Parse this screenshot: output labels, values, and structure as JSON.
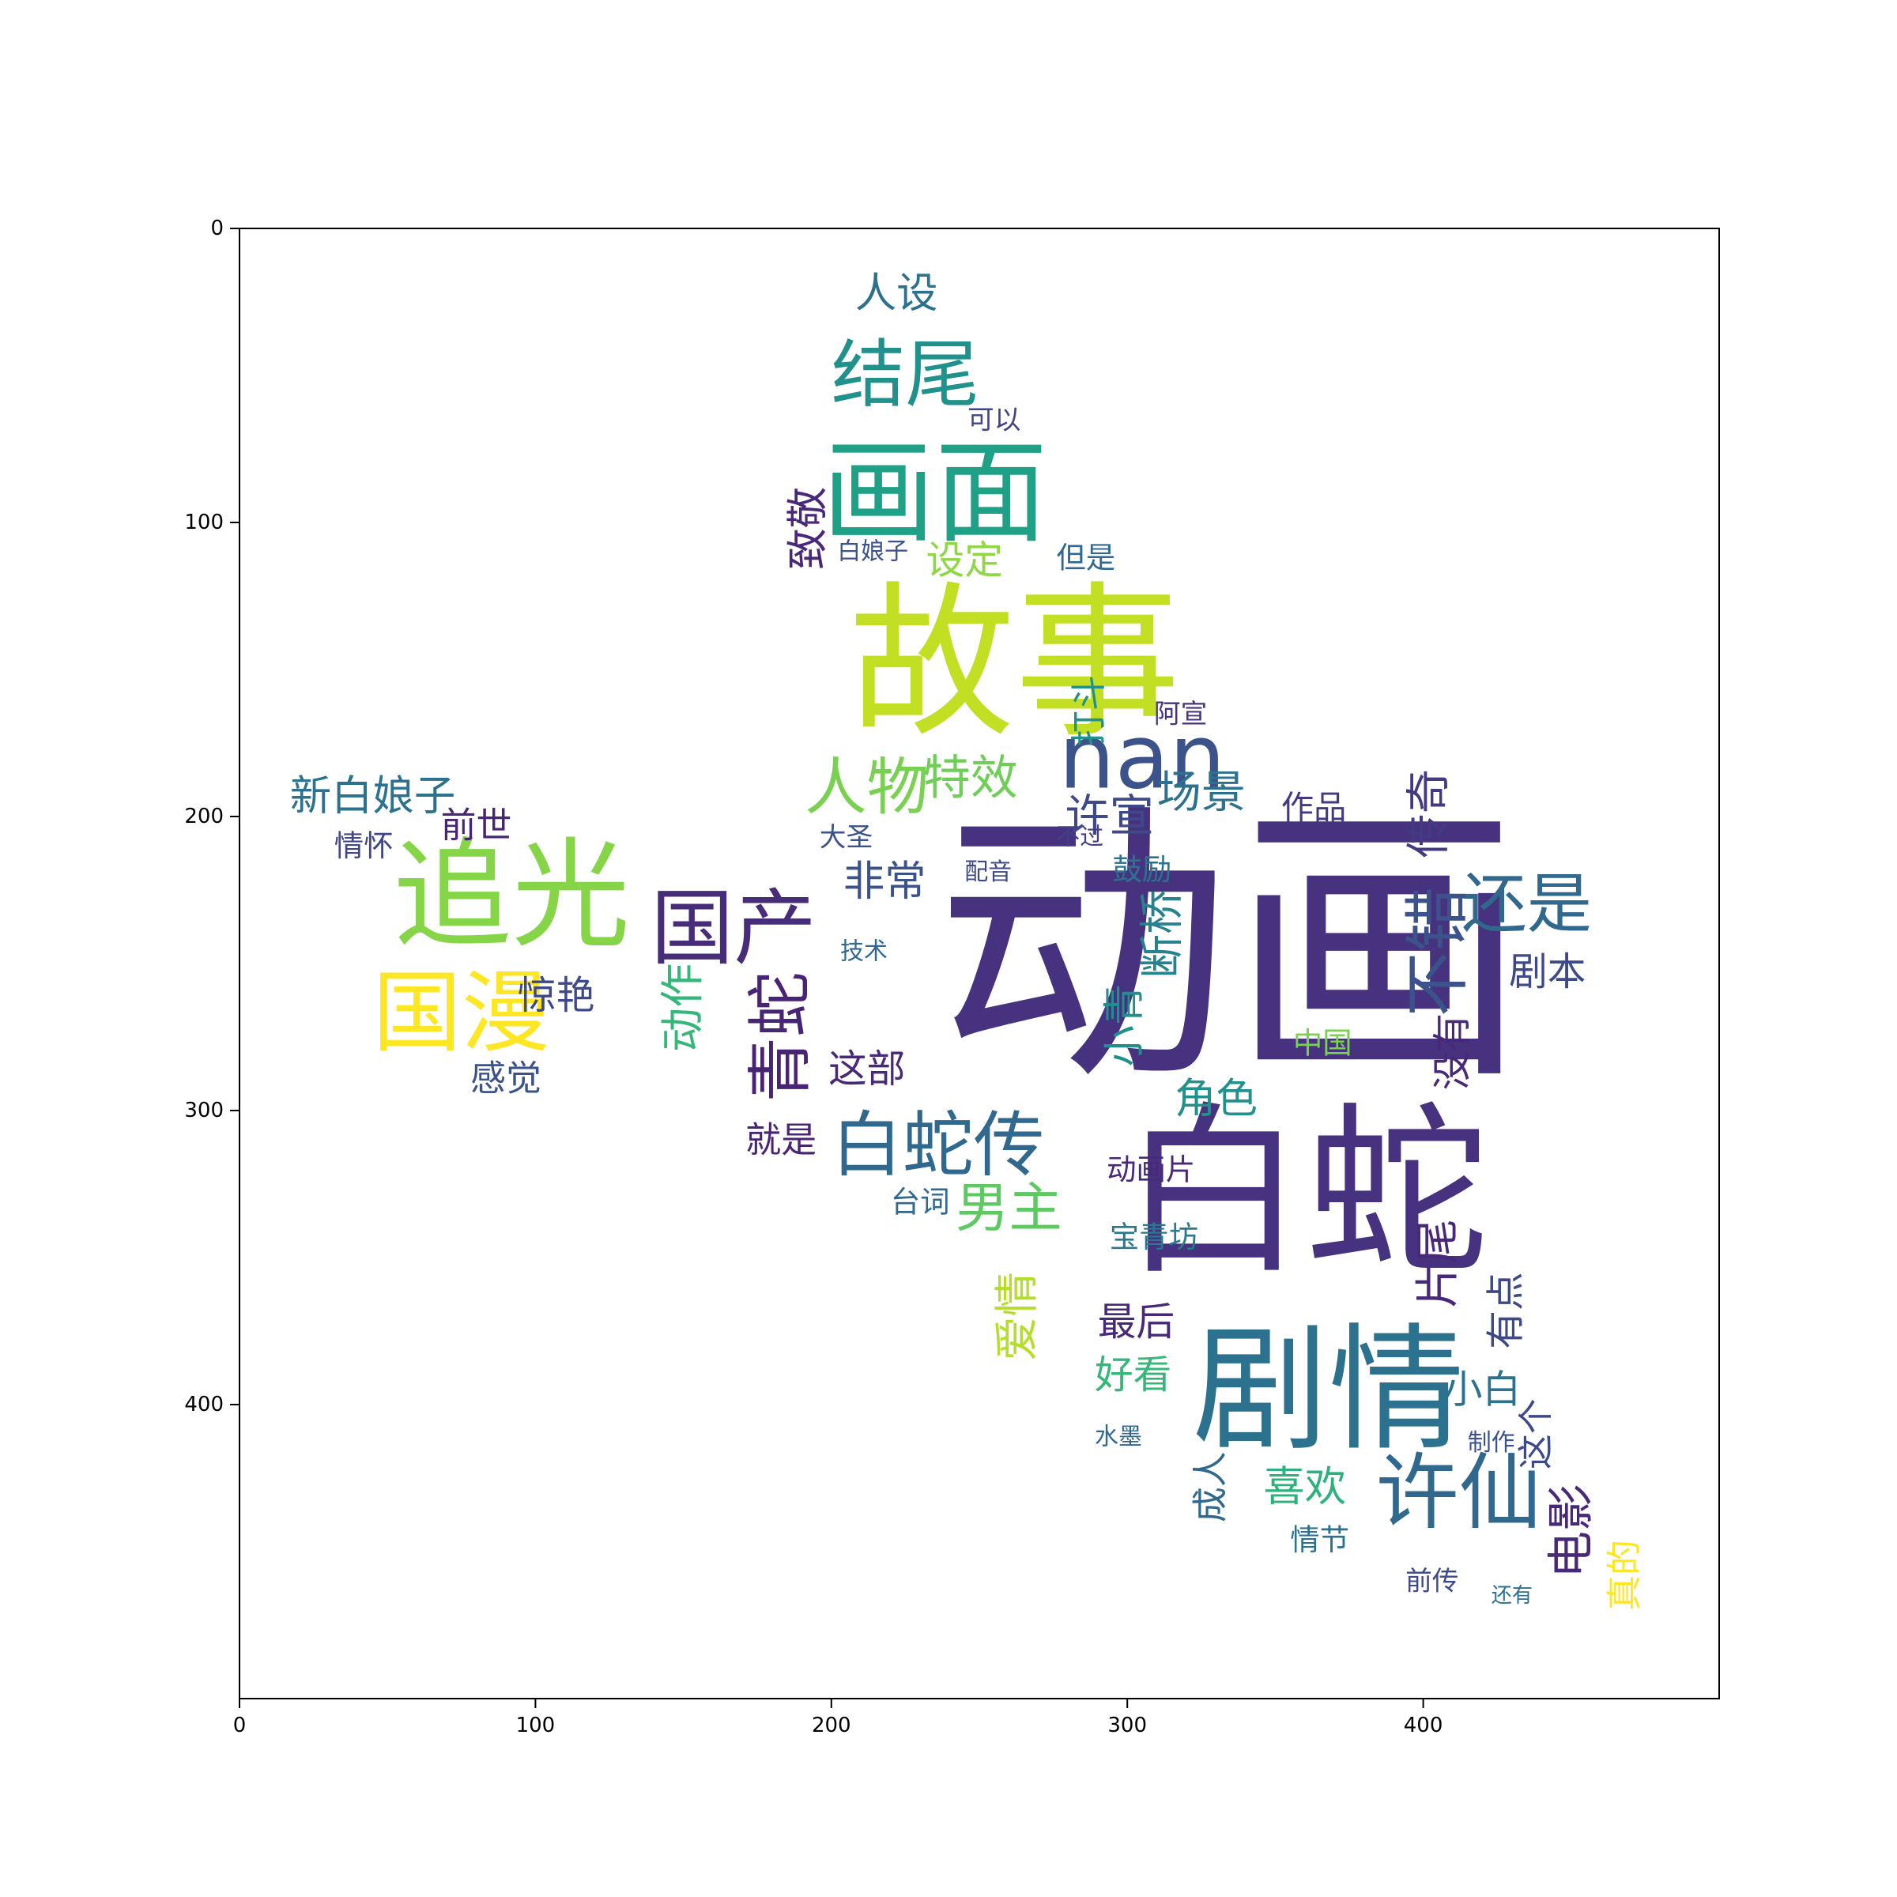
{
  "chart_data": {
    "type": "wordcloud",
    "title": "",
    "xlabel": "",
    "ylabel": "",
    "xlim": [
      0,
      500
    ],
    "ylim": [
      500,
      0
    ],
    "x_ticks": [
      0,
      100,
      200,
      300,
      400
    ],
    "y_ticks": [
      0,
      100,
      200,
      300,
      400
    ],
    "grid": false,
    "shape": "star",
    "colormap": "viridis",
    "words": [
      {
        "text": "动画",
        "x": 335,
        "y": 245,
        "size": 100,
        "color": "#46327e",
        "rot": 0
      },
      {
        "text": "白蛇",
        "x": 360,
        "y": 328,
        "size": 62,
        "color": "#46327e",
        "rot": 0
      },
      {
        "text": "故事",
        "x": 262,
        "y": 148,
        "size": 56,
        "color": "#c2df23",
        "rot": 0
      },
      {
        "text": "剧情",
        "x": 368,
        "y": 395,
        "size": 46,
        "color": "#2c728e",
        "rot": 0
      },
      {
        "text": "追光",
        "x": 92,
        "y": 227,
        "size": 40,
        "color": "#86d549",
        "rot": 0
      },
      {
        "text": "画面",
        "x": 235,
        "y": 90,
        "size": 38,
        "color": "#1fa187",
        "rot": 0
      },
      {
        "text": "nan",
        "x": 305,
        "y": 180,
        "size": 30,
        "color": "#3b528b",
        "rot": 0
      },
      {
        "text": "国漫",
        "x": 75,
        "y": 267,
        "size": 30,
        "color": "#fde725",
        "rot": 0
      },
      {
        "text": "国产",
        "x": 167,
        "y": 238,
        "size": 28,
        "color": "#472c7a",
        "rot": 0
      },
      {
        "text": "许仙",
        "x": 412,
        "y": 430,
        "size": 28,
        "color": "#31688e",
        "rot": 0
      },
      {
        "text": "结尾",
        "x": 225,
        "y": 50,
        "size": 25,
        "color": "#21918c",
        "rot": 0
      },
      {
        "text": "白蛇传",
        "x": 236,
        "y": 312,
        "size": 24,
        "color": "#31688e",
        "rot": 0
      },
      {
        "text": "还是",
        "x": 435,
        "y": 230,
        "size": 22,
        "color": "#31688e",
        "rot": 0
      },
      {
        "text": "人物",
        "x": 212,
        "y": 190,
        "size": 21,
        "color": "#7ad151",
        "rot": 0
      },
      {
        "text": "青蛇",
        "x": 183,
        "y": 275,
        "size": 22,
        "color": "#482475",
        "rot": -90
      },
      {
        "text": "不错",
        "x": 405,
        "y": 246,
        "size": 22,
        "color": "#3b528b",
        "rot": -90
      },
      {
        "text": "男主",
        "x": 260,
        "y": 333,
        "size": 18,
        "color": "#5ec962",
        "rot": 0
      },
      {
        "text": "新白娘子",
        "x": 45,
        "y": 193,
        "size": 14,
        "color": "#2c728e",
        "rot": 0
      },
      {
        "text": "特效",
        "x": 247,
        "y": 187,
        "size": 16,
        "color": "#6ece58",
        "rot": 0
      },
      {
        "text": "许宣",
        "x": 294,
        "y": 200,
        "size": 15,
        "color": "#3e4989",
        "rot": 0
      },
      {
        "text": "场景",
        "x": 325,
        "y": 192,
        "size": 15,
        "color": "#2c728e",
        "rot": 0
      },
      {
        "text": "作品",
        "x": 363,
        "y": 197,
        "size": 11,
        "color": "#443983",
        "rot": 0
      },
      {
        "text": "设定",
        "x": 245,
        "y": 113,
        "size": 13,
        "color": "#8fd744",
        "rot": 0
      },
      {
        "text": "但是",
        "x": 286,
        "y": 112,
        "size": 10,
        "color": "#31688e",
        "rot": 0
      },
      {
        "text": "致敬",
        "x": 192,
        "y": 102,
        "size": 14,
        "color": "#482878",
        "rot": -90
      },
      {
        "text": "人设",
        "x": 222,
        "y": 22,
        "size": 14,
        "color": "#2c728e",
        "rot": 0
      },
      {
        "text": "可以",
        "x": 255,
        "y": 65,
        "size": 9,
        "color": "#414487",
        "rot": 0
      },
      {
        "text": "白娘子",
        "x": 214,
        "y": 110,
        "size": 8,
        "color": "#3b528b",
        "rot": 0
      },
      {
        "text": "打斗",
        "x": 287,
        "y": 164,
        "size": 12,
        "color": "#21918c",
        "rot": -90
      },
      {
        "text": "阿宣",
        "x": 318,
        "y": 165,
        "size": 9,
        "color": "#46337e",
        "rot": 0
      },
      {
        "text": "传奇",
        "x": 402,
        "y": 199,
        "size": 15,
        "color": "#443983",
        "rot": -90
      },
      {
        "text": "前世",
        "x": 80,
        "y": 203,
        "size": 12,
        "color": "#482475",
        "rot": 0
      },
      {
        "text": "情怀",
        "x": 42,
        "y": 210,
        "size": 10,
        "color": "#404688",
        "rot": 0
      },
      {
        "text": "非常",
        "x": 218,
        "y": 222,
        "size": 14,
        "color": "#3b528b",
        "rot": 0
      },
      {
        "text": "断桥",
        "x": 312,
        "y": 240,
        "size": 15,
        "color": "#26828e",
        "rot": -90
      },
      {
        "text": "剧本",
        "x": 442,
        "y": 253,
        "size": 13,
        "color": "#3e4989",
        "rot": 0
      },
      {
        "text": "惊艳",
        "x": 107,
        "y": 261,
        "size": 13,
        "color": "#3e4989",
        "rot": 0
      },
      {
        "text": "动作",
        "x": 150,
        "y": 265,
        "size": 15,
        "color": "#35b779",
        "rot": -90
      },
      {
        "text": "小青",
        "x": 299,
        "y": 271,
        "size": 14,
        "color": "#218f8d",
        "rot": -90
      },
      {
        "text": "感觉",
        "x": 90,
        "y": 289,
        "size": 12,
        "color": "#3b528b",
        "rot": 0
      },
      {
        "text": "这部",
        "x": 212,
        "y": 286,
        "size": 13,
        "color": "#482878",
        "rot": 0
      },
      {
        "text": "没有",
        "x": 410,
        "y": 280,
        "size": 13,
        "color": "#482878",
        "rot": -90
      },
      {
        "text": "中国",
        "x": 366,
        "y": 277,
        "size": 10,
        "color": "#7ad151",
        "rot": 0
      },
      {
        "text": "角色",
        "x": 330,
        "y": 296,
        "size": 14,
        "color": "#21918c",
        "rot": 0
      },
      {
        "text": "就是",
        "x": 183,
        "y": 310,
        "size": 12,
        "color": "#482475",
        "rot": 0
      },
      {
        "text": "动画片",
        "x": 308,
        "y": 320,
        "size": 10,
        "color": "#482878",
        "rot": 0
      },
      {
        "text": "台词",
        "x": 230,
        "y": 331,
        "size": 10,
        "color": "#31688e",
        "rot": 0
      },
      {
        "text": "宝青坊",
        "x": 309,
        "y": 343,
        "size": 10,
        "color": "#2a788e",
        "rot": 0
      },
      {
        "text": "片尾",
        "x": 405,
        "y": 352,
        "size": 15,
        "color": "#482878",
        "rot": -90
      },
      {
        "text": "爱情",
        "x": 263,
        "y": 370,
        "size": 15,
        "color": "#b5de2b",
        "rot": -90
      },
      {
        "text": "最后",
        "x": 303,
        "y": 372,
        "size": 13,
        "color": "#482878",
        "rot": 0
      },
      {
        "text": "好看",
        "x": 302,
        "y": 390,
        "size": 13,
        "color": "#35b779",
        "rot": 0
      },
      {
        "text": "有点",
        "x": 428,
        "y": 368,
        "size": 13,
        "color": "#3e4989",
        "rot": -90
      },
      {
        "text": "小白",
        "x": 420,
        "y": 395,
        "size": 13,
        "color": "#2c728e",
        "rot": 0
      },
      {
        "text": "这个",
        "x": 438,
        "y": 410,
        "size": 12,
        "color": "#3e4989",
        "rot": -90
      },
      {
        "text": "成人",
        "x": 328,
        "y": 428,
        "size": 12,
        "color": "#31688e",
        "rot": -90
      },
      {
        "text": "喜欢",
        "x": 360,
        "y": 428,
        "size": 14,
        "color": "#2db27d",
        "rot": 0
      },
      {
        "text": "情节",
        "x": 365,
        "y": 446,
        "size": 10,
        "color": "#2c728e",
        "rot": 0
      },
      {
        "text": "电影",
        "x": 450,
        "y": 443,
        "size": 16,
        "color": "#482878",
        "rot": -90
      },
      {
        "text": "真的",
        "x": 468,
        "y": 458,
        "size": 12,
        "color": "#fde725",
        "rot": -90
      },
      {
        "text": "前传",
        "x": 403,
        "y": 460,
        "size": 9,
        "color": "#3e4989",
        "rot": 0
      },
      {
        "text": "还有",
        "x": 430,
        "y": 465,
        "size": 7,
        "color": "#2c728e",
        "rot": 0
      },
      {
        "text": "大圣",
        "x": 205,
        "y": 207,
        "size": 9,
        "color": "#3b528b",
        "rot": 0
      },
      {
        "text": "不过",
        "x": 284,
        "y": 207,
        "size": 8,
        "color": "#433e85",
        "rot": 0
      },
      {
        "text": "鼓励",
        "x": 305,
        "y": 218,
        "size": 10,
        "color": "#2c728e",
        "rot": 0
      },
      {
        "text": "配音",
        "x": 253,
        "y": 219,
        "size": 8,
        "color": "#3e4989",
        "rot": 0
      },
      {
        "text": "技术",
        "x": 211,
        "y": 246,
        "size": 8,
        "color": "#31688e",
        "rot": 0
      },
      {
        "text": "水墨",
        "x": 297,
        "y": 411,
        "size": 8,
        "color": "#31688e",
        "rot": 0
      },
      {
        "text": "制作",
        "x": 423,
        "y": 413,
        "size": 8,
        "color": "#3b528b",
        "rot": 0
      }
    ]
  }
}
